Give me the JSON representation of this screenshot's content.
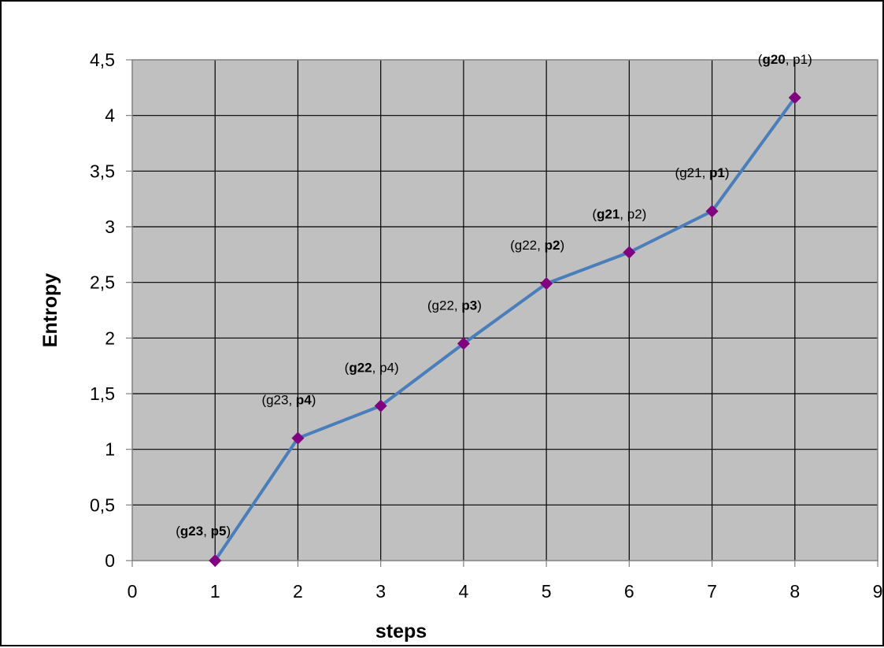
{
  "chart_data": {
    "type": "line",
    "xlabel": "steps",
    "ylabel": "Entropy",
    "xlim": [
      0,
      9
    ],
    "ylim": [
      0,
      4.5
    ],
    "xticks": [
      "0",
      "1",
      "2",
      "3",
      "4",
      "5",
      "6",
      "7",
      "8",
      "9"
    ],
    "yticks": [
      "0",
      "0,5",
      "1",
      "1,5",
      "2",
      "2,5",
      "3",
      "3,5",
      "4",
      "4,5"
    ],
    "grid": true,
    "legend": "none",
    "colors": {
      "plot_background": "#c0c0c0",
      "line": "#4a7ebb",
      "marker": "#800080",
      "grid": "#000000"
    },
    "series": [
      {
        "x": [
          1,
          2,
          3,
          4,
          5,
          6,
          7,
          8
        ],
        "y": [
          0,
          1.1,
          1.39,
          1.95,
          2.49,
          2.77,
          3.14,
          4.16
        ],
        "labels": [
          [
            {
              "t": "(",
              "b": false
            },
            {
              "t": "g23",
              "b": true
            },
            {
              "t": ", ",
              "b": false
            },
            {
              "t": "p5",
              "b": true
            },
            {
              "t": ")",
              "b": false
            }
          ],
          [
            {
              "t": "(g23, ",
              "b": false
            },
            {
              "t": "p4",
              "b": true
            },
            {
              "t": ")",
              "b": false
            }
          ],
          [
            {
              "t": "(",
              "b": false
            },
            {
              "t": "g22",
              "b": true
            },
            {
              "t": ", p4)",
              "b": false
            }
          ],
          [
            {
              "t": "(g22, ",
              "b": false
            },
            {
              "t": "p3",
              "b": true
            },
            {
              "t": ")",
              "b": false
            }
          ],
          [
            {
              "t": "(g22, ",
              "b": false
            },
            {
              "t": "p2",
              "b": true
            },
            {
              "t": ")",
              "b": false
            }
          ],
          [
            {
              "t": "(",
              "b": false
            },
            {
              "t": "g21",
              "b": true
            },
            {
              "t": ", p2)",
              "b": false
            }
          ],
          [
            {
              "t": "(g21, ",
              "b": false
            },
            {
              "t": "p1",
              "b": true
            },
            {
              "t": ")",
              "b": false
            }
          ],
          [
            {
              "t": "(",
              "b": false
            },
            {
              "t": "g20",
              "b": true
            },
            {
              "t": ", p1)",
              "b": false
            }
          ]
        ]
      }
    ]
  }
}
